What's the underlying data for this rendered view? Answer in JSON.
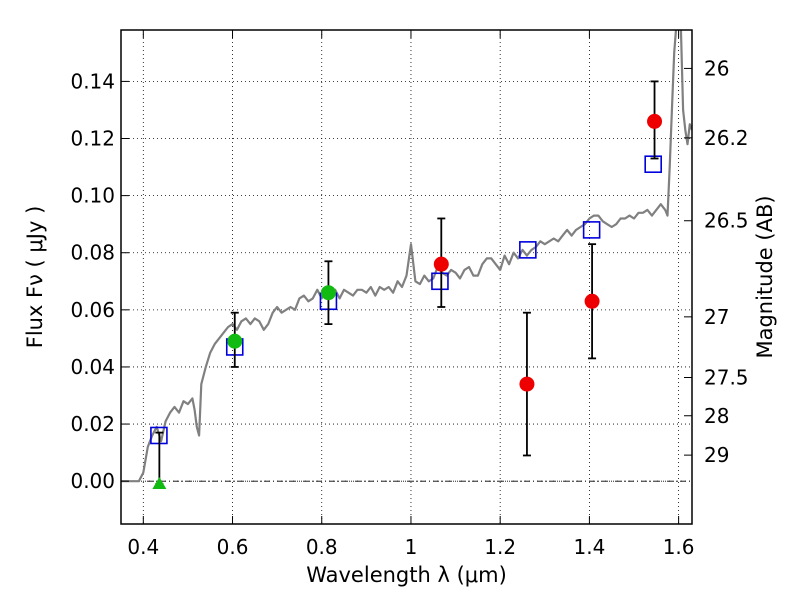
{
  "chart_data": {
    "type": "scatter",
    "xlabel": "Wavelength  λ (μm)",
    "ylabel": "Flux  Fν ( μJy )",
    "y2label": "Magnitude (AB)",
    "xlim": [
      0.35,
      1.63
    ],
    "ylim": [
      -0.015,
      0.158
    ],
    "grid": true,
    "x_ticks": [
      {
        "value": 0.4,
        "label": "0.4"
      },
      {
        "value": 0.6,
        "label": "0.6"
      },
      {
        "value": 0.8,
        "label": "0.8"
      },
      {
        "value": 1.0,
        "label": "1"
      },
      {
        "value": 1.2,
        "label": "1.2"
      },
      {
        "value": 1.4,
        "label": "1.4"
      },
      {
        "value": 1.6,
        "label": "1.6"
      }
    ],
    "y_ticks": [
      {
        "value": 0.0,
        "label": "0.00"
      },
      {
        "value": 0.02,
        "label": "0.02"
      },
      {
        "value": 0.04,
        "label": "0.04"
      },
      {
        "value": 0.06,
        "label": "0.06"
      },
      {
        "value": 0.08,
        "label": "0.08"
      },
      {
        "value": 0.1,
        "label": "0.10"
      },
      {
        "value": 0.12,
        "label": "0.12"
      },
      {
        "value": 0.14,
        "label": "0.14"
      }
    ],
    "y2_ticks": [
      {
        "value": 26,
        "label": "26"
      },
      {
        "value": 26.2,
        "label": "26.2"
      },
      {
        "value": 26.5,
        "label": "26.5"
      },
      {
        "value": 27,
        "label": "27"
      },
      {
        "value": 27.5,
        "label": "27.5"
      },
      {
        "value": 28,
        "label": "28"
      },
      {
        "value": 29,
        "label": "29"
      }
    ],
    "y2_zeropoint_uJy": 23.9,
    "series": [
      {
        "kind": "line",
        "color": "#808080",
        "points": [
          [
            0.35,
            0.0
          ],
          [
            0.36,
            0.0
          ],
          [
            0.37,
            0.0
          ],
          [
            0.38,
            0.0
          ],
          [
            0.39,
            0.0
          ],
          [
            0.4,
            0.003
          ],
          [
            0.41,
            0.012
          ],
          [
            0.42,
            0.016
          ],
          [
            0.43,
            0.019
          ],
          [
            0.44,
            0.014
          ],
          [
            0.45,
            0.021
          ],
          [
            0.46,
            0.024
          ],
          [
            0.47,
            0.026
          ],
          [
            0.48,
            0.024
          ],
          [
            0.49,
            0.028
          ],
          [
            0.5,
            0.027
          ],
          [
            0.51,
            0.029
          ],
          [
            0.515,
            0.025
          ],
          [
            0.52,
            0.019
          ],
          [
            0.525,
            0.016
          ],
          [
            0.53,
            0.034
          ],
          [
            0.54,
            0.04
          ],
          [
            0.55,
            0.045
          ],
          [
            0.56,
            0.048
          ],
          [
            0.57,
            0.05
          ],
          [
            0.58,
            0.052
          ],
          [
            0.59,
            0.054
          ],
          [
            0.6,
            0.055
          ],
          [
            0.61,
            0.053
          ],
          [
            0.62,
            0.056
          ],
          [
            0.63,
            0.057
          ],
          [
            0.64,
            0.055
          ],
          [
            0.65,
            0.057
          ],
          [
            0.66,
            0.056
          ],
          [
            0.67,
            0.053
          ],
          [
            0.68,
            0.055
          ],
          [
            0.69,
            0.059
          ],
          [
            0.7,
            0.061
          ],
          [
            0.71,
            0.059
          ],
          [
            0.72,
            0.06
          ],
          [
            0.73,
            0.061
          ],
          [
            0.74,
            0.06
          ],
          [
            0.75,
            0.064
          ],
          [
            0.76,
            0.065
          ],
          [
            0.77,
            0.063
          ],
          [
            0.78,
            0.064
          ],
          [
            0.79,
            0.067
          ],
          [
            0.8,
            0.064
          ],
          [
            0.81,
            0.067
          ],
          [
            0.82,
            0.066
          ],
          [
            0.83,
            0.067
          ],
          [
            0.84,
            0.064
          ],
          [
            0.85,
            0.067
          ],
          [
            0.86,
            0.066
          ],
          [
            0.87,
            0.065
          ],
          [
            0.88,
            0.067
          ],
          [
            0.89,
            0.067
          ],
          [
            0.9,
            0.066
          ],
          [
            0.91,
            0.068
          ],
          [
            0.92,
            0.065
          ],
          [
            0.93,
            0.068
          ],
          [
            0.94,
            0.067
          ],
          [
            0.95,
            0.068
          ],
          [
            0.96,
            0.066
          ],
          [
            0.97,
            0.07
          ],
          [
            0.98,
            0.068
          ],
          [
            0.99,
            0.072
          ],
          [
            1.0,
            0.083
          ],
          [
            1.01,
            0.07
          ],
          [
            1.02,
            0.069
          ],
          [
            1.03,
            0.072
          ],
          [
            1.04,
            0.07
          ],
          [
            1.05,
            0.071
          ],
          [
            1.06,
            0.075
          ],
          [
            1.07,
            0.073
          ],
          [
            1.08,
            0.072
          ],
          [
            1.09,
            0.074
          ],
          [
            1.1,
            0.073
          ],
          [
            1.11,
            0.071
          ],
          [
            1.12,
            0.074
          ],
          [
            1.13,
            0.075
          ],
          [
            1.14,
            0.072
          ],
          [
            1.15,
            0.072
          ],
          [
            1.16,
            0.076
          ],
          [
            1.17,
            0.078
          ],
          [
            1.18,
            0.078
          ],
          [
            1.19,
            0.076
          ],
          [
            1.2,
            0.074
          ],
          [
            1.21,
            0.079
          ],
          [
            1.22,
            0.076
          ],
          [
            1.23,
            0.08
          ],
          [
            1.24,
            0.078
          ],
          [
            1.25,
            0.081
          ],
          [
            1.26,
            0.079
          ],
          [
            1.27,
            0.081
          ],
          [
            1.28,
            0.082
          ],
          [
            1.29,
            0.084
          ],
          [
            1.3,
            0.083
          ],
          [
            1.31,
            0.084
          ],
          [
            1.32,
            0.085
          ],
          [
            1.33,
            0.084
          ],
          [
            1.34,
            0.086
          ],
          [
            1.35,
            0.088
          ],
          [
            1.36,
            0.086
          ],
          [
            1.37,
            0.088
          ],
          [
            1.38,
            0.089
          ],
          [
            1.39,
            0.09
          ],
          [
            1.4,
            0.092
          ],
          [
            1.41,
            0.093
          ],
          [
            1.42,
            0.093
          ],
          [
            1.43,
            0.091
          ],
          [
            1.44,
            0.09
          ],
          [
            1.45,
            0.089
          ],
          [
            1.46,
            0.09
          ],
          [
            1.47,
            0.092
          ],
          [
            1.48,
            0.092
          ],
          [
            1.49,
            0.093
          ],
          [
            1.5,
            0.092
          ],
          [
            1.51,
            0.094
          ],
          [
            1.52,
            0.094
          ],
          [
            1.53,
            0.095
          ],
          [
            1.54,
            0.093
          ],
          [
            1.55,
            0.095
          ],
          [
            1.56,
            0.097
          ],
          [
            1.57,
            0.095
          ],
          [
            1.575,
            0.093
          ],
          [
            1.58,
            0.11
          ],
          [
            1.585,
            0.13
          ],
          [
            1.59,
            0.15
          ],
          [
            1.595,
            0.16
          ]
        ]
      },
      {
        "kind": "line",
        "color": "#808080",
        "points": [
          [
            1.605,
            0.16
          ],
          [
            1.61,
            0.13
          ],
          [
            1.615,
            0.123
          ],
          [
            1.62,
            0.118
          ],
          [
            1.625,
            0.125
          ],
          [
            1.63,
            0.123
          ]
        ]
      },
      {
        "kind": "open-square",
        "color": "#0000dd",
        "points": [
          [
            0.435,
            0.016
          ],
          [
            0.605,
            0.047
          ],
          [
            0.815,
            0.063
          ],
          [
            1.065,
            0.07
          ],
          [
            1.262,
            0.081
          ],
          [
            1.405,
            0.088
          ],
          [
            1.543,
            0.111
          ]
        ]
      },
      {
        "kind": "circle",
        "color": "#ee0000",
        "points": [
          {
            "x": 1.068,
            "y": 0.076,
            "lo": 0.061,
            "hi": 0.092
          },
          {
            "x": 1.26,
            "y": 0.034,
            "lo": 0.009,
            "hi": 0.059
          },
          {
            "x": 1.406,
            "y": 0.063,
            "lo": 0.043,
            "hi": 0.083
          },
          {
            "x": 1.546,
            "y": 0.126,
            "lo": 0.113,
            "hi": 0.14
          }
        ]
      },
      {
        "kind": "circle",
        "color": "#11bb11",
        "points": [
          {
            "x": 0.605,
            "y": 0.049,
            "lo": 0.04,
            "hi": 0.059
          },
          {
            "x": 0.815,
            "y": 0.066,
            "lo": 0.055,
            "hi": 0.077
          }
        ]
      },
      {
        "kind": "triangle",
        "color": "#11bb11",
        "points": [
          {
            "x": 0.436,
            "y": -0.001,
            "lo": -0.001,
            "hi": 0.017
          }
        ]
      }
    ]
  }
}
